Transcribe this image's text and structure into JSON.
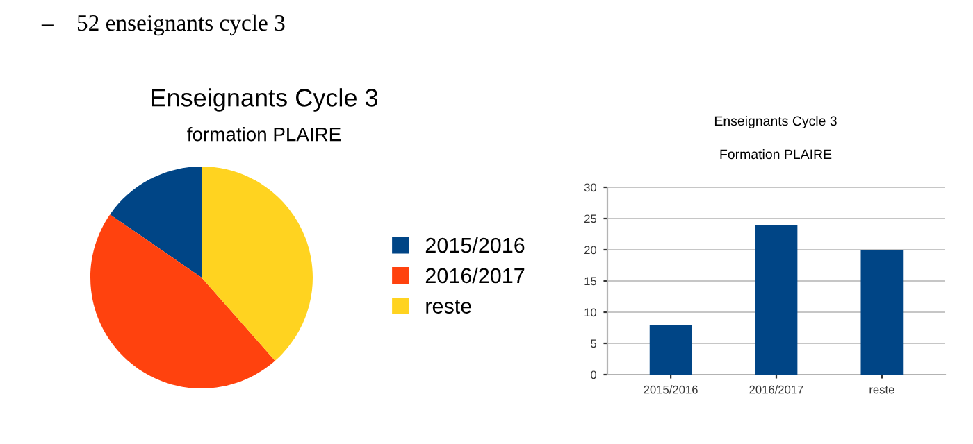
{
  "chart_data": [
    {
      "type": "pie",
      "title": "Enseignants Cycle 3",
      "subtitle": "formation PLAIRE",
      "categories": [
        "2015/2016",
        "2016/2017",
        "reste"
      ],
      "values": [
        15.4,
        46.1,
        38.5
      ],
      "colors": [
        "#004586",
        "#ff420e",
        "#ffd320"
      ],
      "legend": "right",
      "annotations": [
        "–    52 enseignants cycle 3"
      ]
    },
    {
      "type": "bar",
      "title": "Enseignants Cycle 3",
      "subtitle": "Formation PLAIRE",
      "categories": [
        "2015/2016",
        "2016/2017",
        "reste"
      ],
      "values": [
        8,
        24,
        20
      ],
      "color": "#004586",
      "ylim": [
        0,
        30
      ],
      "yticks": [
        0,
        5,
        10,
        15,
        20,
        25,
        30
      ],
      "grid": "y",
      "legend": false
    }
  ]
}
